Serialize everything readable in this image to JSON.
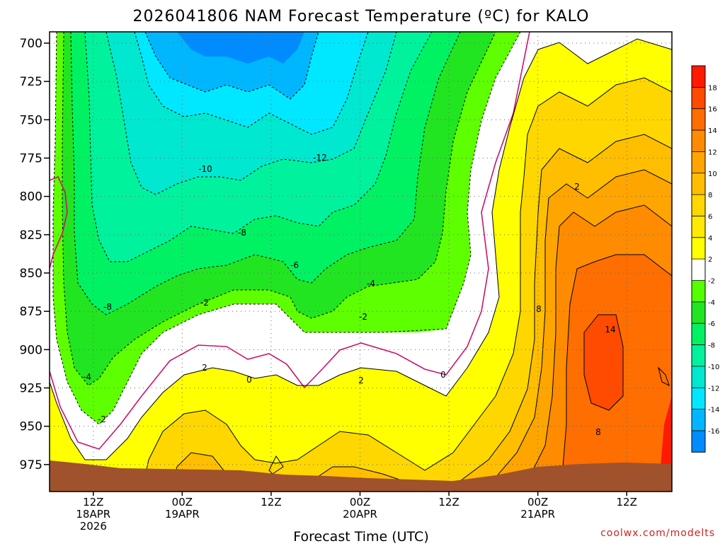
{
  "chart_data": {
    "type": "heatmap",
    "title": "2026041806 NAM Forecast Temperature (ºC) for KALO",
    "xlabel": "Forecast Time (UTC)",
    "ylabel": "",
    "y_ticks": [
      "700",
      "725",
      "750",
      "775",
      "800",
      "825",
      "850",
      "875",
      "900",
      "925",
      "950",
      "975"
    ],
    "ylim": [
      700,
      1000
    ],
    "x_ticks": [
      {
        "hour": 6,
        "lines": [
          "12Z",
          "18APR",
          "2026"
        ]
      },
      {
        "hour": 18,
        "lines": [
          "00Z",
          "19APR"
        ]
      },
      {
        "hour": 30,
        "lines": [
          "12Z"
        ]
      },
      {
        "hour": 42,
        "lines": [
          "00Z",
          "20APR"
        ]
      },
      {
        "hour": 54,
        "lines": [
          "12Z"
        ]
      },
      {
        "hour": 66,
        "lines": [
          "00Z",
          "21APR"
        ]
      },
      {
        "hour": 78,
        "lines": [
          "12Z"
        ]
      }
    ],
    "xlim": [
      0,
      84
    ],
    "colorbar": {
      "labels": [
        "18",
        "16",
        "14",
        "12",
        "10",
        "8",
        "6",
        "4",
        "2",
        "-2",
        "-4",
        "-6",
        "-8",
        "-10",
        "-12",
        "-14",
        "-16"
      ],
      "colors": [
        "#ff1a00",
        "#ff4b00",
        "#ff6e00",
        "#ff8c00",
        "#ffa500",
        "#ffbe00",
        "#ffd700",
        "#ffea00",
        "#ffff00",
        "#ffffff",
        "#55ff00",
        "#21e521",
        "#00f263",
        "#00f29d",
        "#00e8cf",
        "#00e8ff",
        "#00b7ff",
        "#008cff"
      ]
    },
    "contour_labels": [
      "-12",
      "-10",
      "-8",
      "-8",
      "-6",
      "-4",
      "-4",
      "-2",
      "-2",
      "-2",
      "2",
      "2",
      "0",
      "0",
      "2",
      "8",
      "8",
      "14"
    ],
    "grid": true,
    "surface_fill": "#a0522d",
    "credit": "coolwx.com/modelts"
  }
}
